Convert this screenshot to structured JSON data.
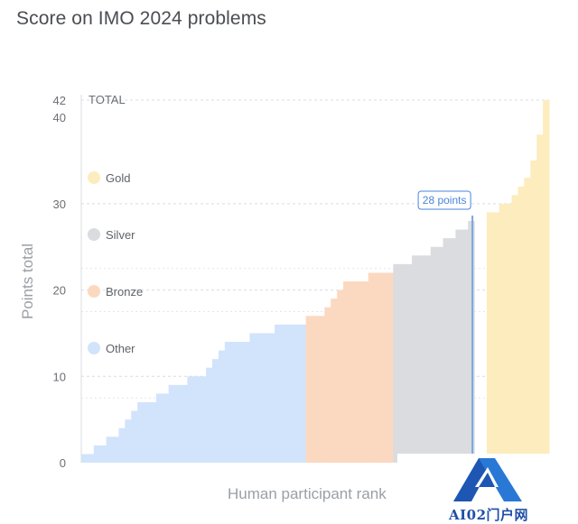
{
  "title": "Score on IMO 2024 problems",
  "chart_data": {
    "type": "bar",
    "xlabel": "Human participant rank",
    "ylabel": "Points total",
    "ylim": [
      0,
      42
    ],
    "yticks": [
      0,
      10,
      20,
      30,
      40,
      42
    ],
    "total_label": "TOTAL",
    "grid": true,
    "legend_placement": "left",
    "series": [
      {
        "name": "Other",
        "color": "#d2e3fc",
        "values": [
          1,
          1,
          2,
          2,
          3,
          3,
          4,
          5,
          6,
          7,
          7,
          7,
          8,
          8,
          9,
          9,
          9,
          10,
          10,
          10,
          11,
          12,
          13,
          14,
          14,
          14,
          14,
          15,
          15,
          15,
          15,
          16,
          16,
          16,
          16,
          16
        ]
      },
      {
        "name": "Bronze",
        "color": "#fbd9c1",
        "values": [
          17,
          17,
          17,
          18,
          19,
          20,
          21,
          21,
          21,
          21,
          22,
          22,
          22,
          22
        ]
      },
      {
        "name": "Silver",
        "color": "#dadce0",
        "values": [
          23,
          23,
          23,
          24,
          24,
          24,
          25,
          25,
          26,
          26,
          27,
          27,
          28
        ]
      },
      {
        "name": "Gold",
        "color": "#fdecbe",
        "values": [
          29,
          29,
          30,
          30,
          31,
          32,
          33,
          35,
          38,
          42
        ]
      }
    ],
    "gap_after_series": 2,
    "annotation": {
      "label": "28 points",
      "value": 28
    }
  },
  "watermark": {
    "text": "AI02门户网"
  },
  "colors": {
    "marker": "#7ba6e0",
    "annotation": "#4a86d8",
    "grid": "#dadce0"
  }
}
